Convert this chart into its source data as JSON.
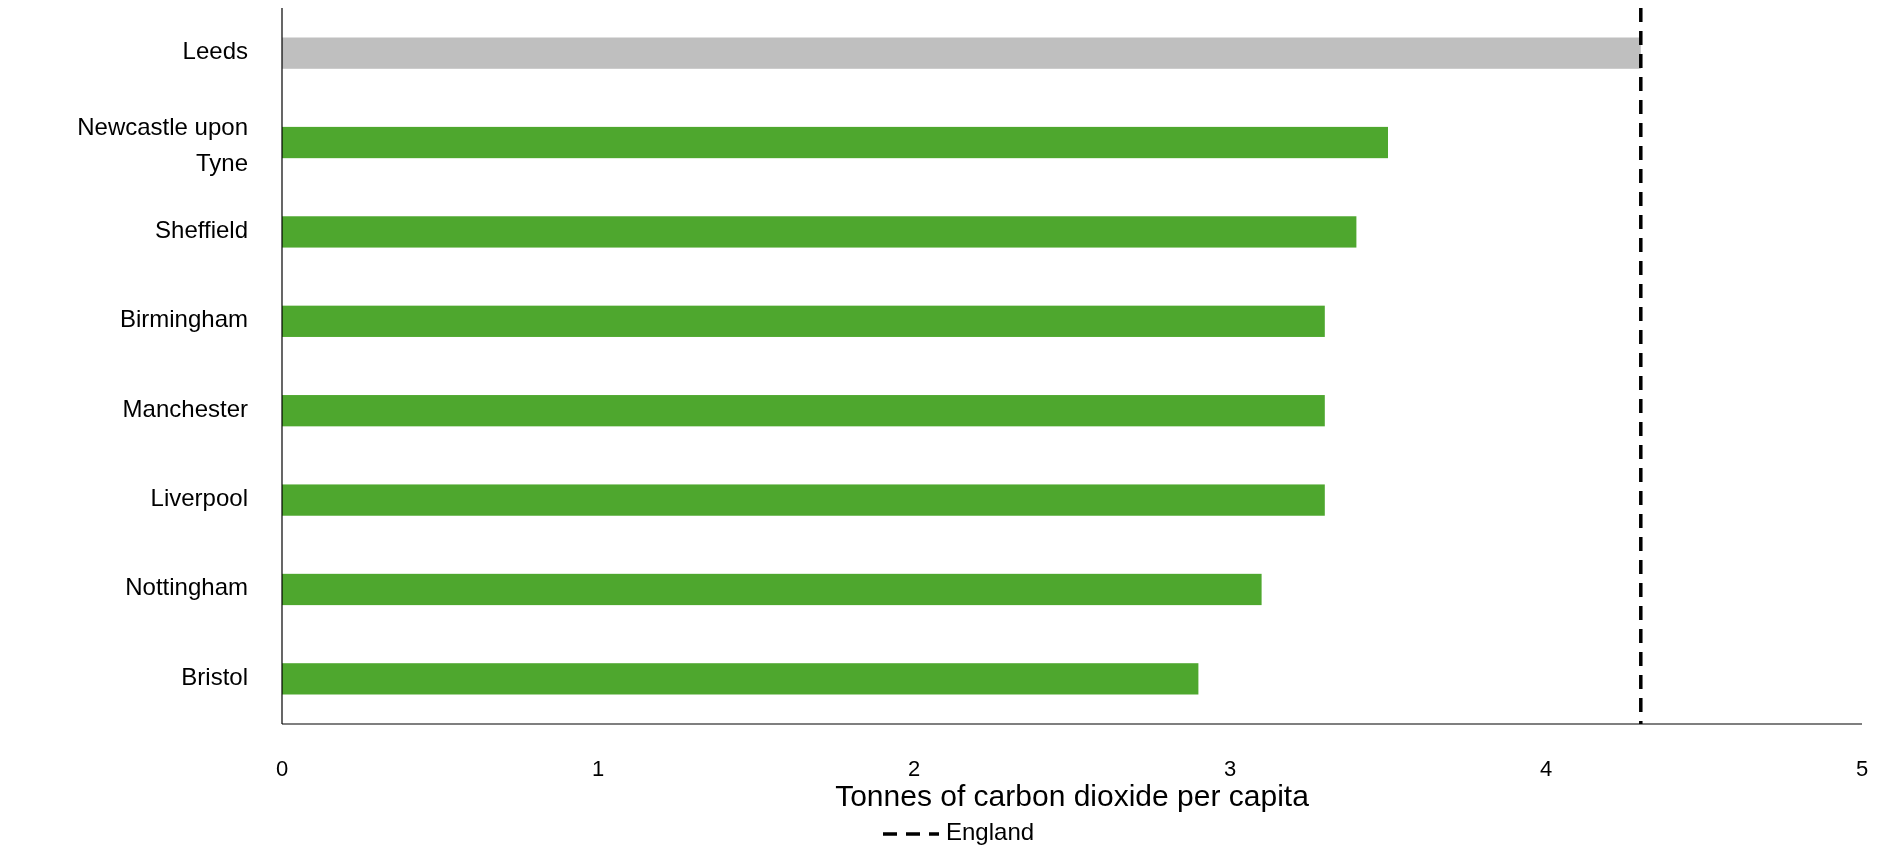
{
  "chart_data": {
    "type": "bar",
    "orientation": "horizontal",
    "xlabel": "Tonnes of carbon dioxide per capita",
    "categories": [
      "Leeds",
      "Newcastle upon Tyne",
      "Sheffield",
      "Birmingham",
      "Manchester",
      "Liverpool",
      "Nottingham",
      "Bristol"
    ],
    "values": [
      4.3,
      3.5,
      3.4,
      3.3,
      3.3,
      3.3,
      3.1,
      2.9
    ],
    "colors": [
      "#bfbfbf",
      "#4ea72e",
      "#4ea72e",
      "#4ea72e",
      "#4ea72e",
      "#4ea72e",
      "#4ea72e",
      "#4ea72e"
    ],
    "xlim": [
      0,
      5
    ],
    "xticks": [
      0,
      1,
      2,
      3,
      4,
      5
    ],
    "grid": false,
    "legend": "bottom",
    "ref_lines": [
      {
        "axis": "x",
        "value": 4.3,
        "label": "England",
        "color": "#000000",
        "line_style": "dashed"
      }
    ]
  }
}
